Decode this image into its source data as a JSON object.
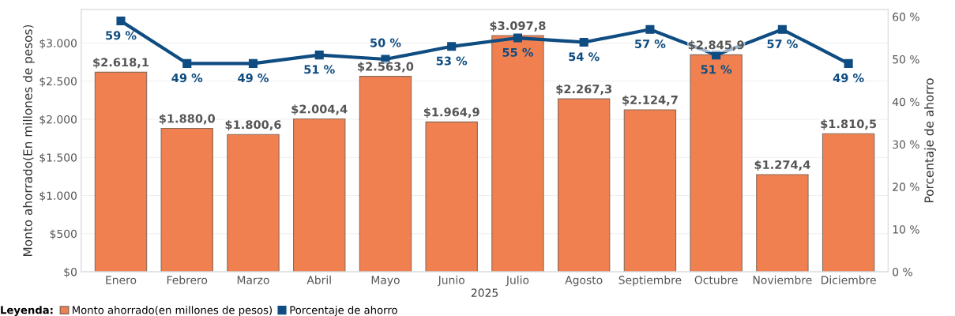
{
  "chart_data": {
    "type": "bar",
    "categories": [
      "Enero",
      "Febrero",
      "Marzo",
      "Abril",
      "Mayo",
      "Junio",
      "Julio",
      "Agosto",
      "Septiembre",
      "Octubre",
      "Noviembre",
      "Diciembre"
    ],
    "xlabel": "2025",
    "ylabel": "Monto ahorrado(En millones de pesos)",
    "y2label": "Porcentaje de ahorro",
    "series": [
      {
        "name": "Monto ahorrado(en millones de pesos)",
        "color": "#f0804f",
        "values": [
          2618.1,
          1880.0,
          1800.6,
          2004.4,
          2563.0,
          1964.9,
          3097.8,
          2267.3,
          2124.7,
          2845.9,
          1274.4,
          1810.5
        ],
        "value_labels": [
          "$2.618,1",
          "$1.880,0",
          "$1.800,6",
          "$2.004,4",
          "$2.563,0",
          "$1.964,9",
          "$3.097,8",
          "$2.267,3",
          "$2.124,7",
          "$2.845,9",
          "$1.274,4",
          "$1.810,5"
        ]
      },
      {
        "name": "Porcentaje de ahorro",
        "type": "line",
        "axis": "y2",
        "color": "#0f4c81",
        "marker": "square",
        "values": [
          59,
          49,
          49,
          51,
          50,
          53,
          55,
          54,
          57,
          51,
          57,
          49
        ],
        "value_labels": [
          "59 %",
          "49 %",
          "49 %",
          "51 %",
          "50 %",
          "53 %",
          "55 %",
          "54 %",
          "57 %",
          "51 %",
          "57 %",
          "49 %"
        ]
      }
    ],
    "ylim": [
      0,
      3440
    ],
    "yticks": [
      {
        "value": 0,
        "label": "$0"
      },
      {
        "value": 500,
        "label": "$500"
      },
      {
        "value": 1000,
        "label": "$1.000"
      },
      {
        "value": 1500,
        "label": "$1.500"
      },
      {
        "value": 2000,
        "label": "$2.000"
      },
      {
        "value": 2500,
        "label": "$2.500"
      },
      {
        "value": 3000,
        "label": "$3.000"
      }
    ],
    "y2lim": [
      0,
      61.7
    ],
    "y2ticks": [
      {
        "value": 0,
        "label": "0 %"
      },
      {
        "value": 10,
        "label": "10 %"
      },
      {
        "value": 20,
        "label": "20 %"
      },
      {
        "value": 30,
        "label": "30 %"
      },
      {
        "value": 40,
        "label": "40 %"
      },
      {
        "value": 50,
        "label": "50 %"
      },
      {
        "value": 60,
        "label": "60 %"
      }
    ],
    "grid": "y",
    "legend": "bottom",
    "legend_title": "Leyenda:"
  }
}
